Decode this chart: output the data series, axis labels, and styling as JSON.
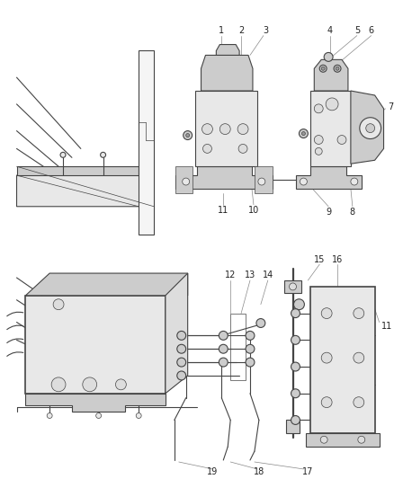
{
  "bg_color": "#ffffff",
  "line_color": "#444444",
  "label_color": "#222222",
  "fig_width": 4.38,
  "fig_height": 5.33,
  "dpi": 100,
  "gray_light": "#e8e8e8",
  "gray_mid": "#cccccc",
  "gray_dark": "#999999",
  "top_section": {
    "ymin": 0.5,
    "ymax": 1.0
  },
  "bottom_section": {
    "ymin": 0.0,
    "ymax": 0.5
  }
}
